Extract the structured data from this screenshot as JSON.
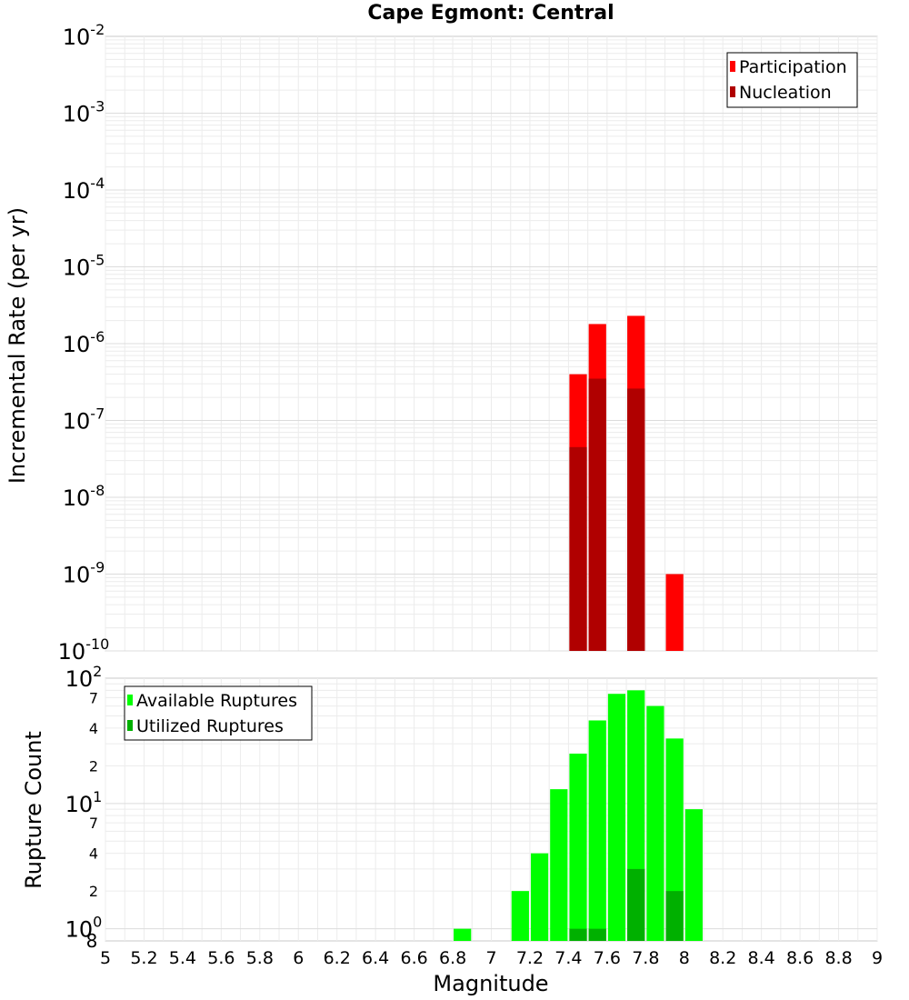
{
  "chart_data": [
    {
      "type": "bar",
      "title": "Cape Egmont: Central",
      "xlabel": "",
      "ylabel": "Incremental Rate (per yr)",
      "yscale": "log",
      "ylim": [
        1e-10,
        0.01
      ],
      "xlim": [
        5,
        9
      ],
      "legend_position": "top-right",
      "grid": true,
      "y_tick_labels": [
        "10-2",
        "10-3",
        "10-4",
        "10-5",
        "10-6",
        "10-7",
        "10-8",
        "10-9",
        "10-10"
      ],
      "series": [
        {
          "name": "Participation",
          "color": "#ff0000",
          "x": [
            7.45,
            7.55,
            7.75,
            7.95
          ],
          "values": [
            4e-07,
            1.8e-06,
            2.3e-06,
            1e-09
          ]
        },
        {
          "name": "Nucleation",
          "color": "#b00000",
          "x": [
            7.45,
            7.55,
            7.75
          ],
          "values": [
            4.5e-08,
            3.5e-07,
            2.6e-07
          ]
        }
      ]
    },
    {
      "type": "bar",
      "title": "",
      "xlabel": "Magnitude",
      "ylabel": "Rupture Count",
      "yscale": "log",
      "ylim": [
        0.8,
        100
      ],
      "xlim": [
        5,
        9
      ],
      "legend_position": "top-left",
      "grid": true,
      "x_ticks": [
        "5",
        "5.2",
        "5.4",
        "5.6",
        "5.8",
        "6",
        "6.2",
        "6.4",
        "6.6",
        "6.8",
        "7",
        "7.2",
        "7.4",
        "7.6",
        "7.8",
        "8",
        "8.2",
        "8.4",
        "8.6",
        "8.8",
        "9"
      ],
      "y_major_ticks": [
        "10^0",
        "10^1",
        "10^2"
      ],
      "y_minor_ticks": [
        "2",
        "4",
        "7",
        "2",
        "4",
        "7"
      ],
      "y_bottom_label": "8",
      "series": [
        {
          "name": "Available Ruptures",
          "color": "#00ff00",
          "x": [
            6.85,
            7.15,
            7.25,
            7.35,
            7.45,
            7.55,
            7.65,
            7.75,
            7.85,
            7.95,
            8.05
          ],
          "values": [
            1,
            2,
            4,
            13,
            25,
            46,
            75,
            80,
            60,
            33,
            9
          ]
        },
        {
          "name": "Utilized Ruptures",
          "color": "#00b000",
          "x": [
            7.45,
            7.55,
            7.75,
            7.95
          ],
          "values": [
            1,
            1,
            3,
            2
          ]
        }
      ]
    }
  ]
}
